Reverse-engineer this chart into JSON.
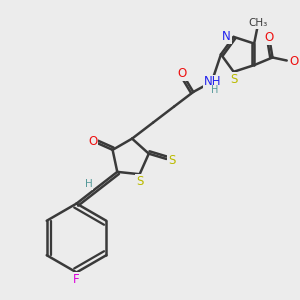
{
  "bg_color": "#ececec",
  "bond_color": "#3a3a3a",
  "bond_width": 1.8,
  "atom_colors": {
    "O": "#ee1111",
    "N": "#2222ee",
    "S": "#bbbb00",
    "F": "#dd00dd",
    "H": "#559999",
    "C": "#3a3a3a"
  },
  "font_size": 8.5
}
